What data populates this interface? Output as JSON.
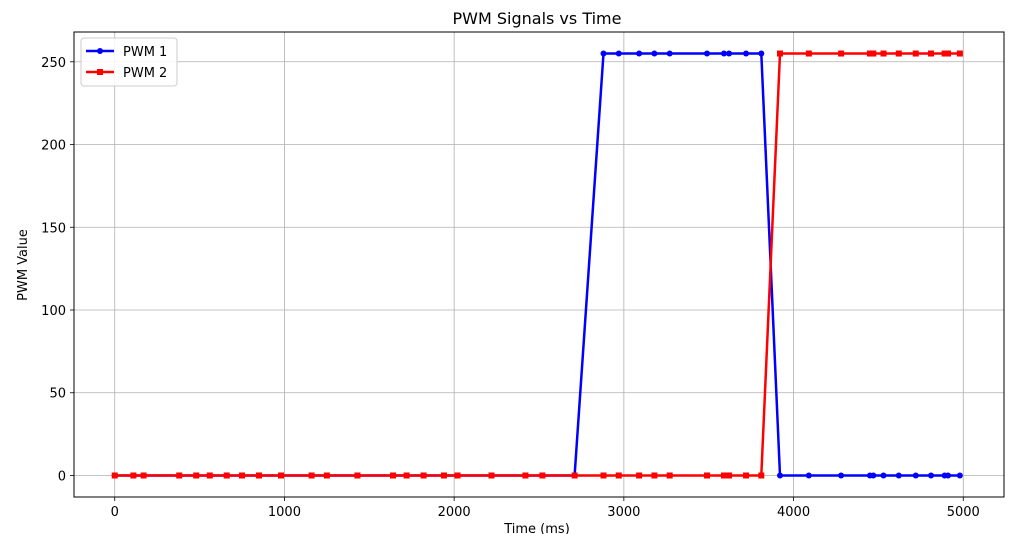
{
  "chart_data": {
    "type": "line",
    "title": "PWM Signals vs Time",
    "xlabel": "Time (ms)",
    "ylabel": "PWM Value",
    "xlim": [
      -240,
      5240
    ],
    "ylim": [
      -13,
      268
    ],
    "xticks": [
      0,
      1000,
      2000,
      3000,
      4000,
      5000
    ],
    "yticks": [
      0,
      50,
      100,
      150,
      200,
      250
    ],
    "grid": true,
    "legend_position": "top-left",
    "series": [
      {
        "name": "PWM 1",
        "color": "#0000ff",
        "marker": "circle",
        "x": [
          0,
          110,
          170,
          380,
          480,
          560,
          660,
          750,
          850,
          980,
          1160,
          1250,
          1430,
          1640,
          1720,
          1820,
          1940,
          2020,
          2220,
          2420,
          2520,
          2710,
          2880,
          2970,
          3090,
          3180,
          3270,
          3490,
          3590,
          3620,
          3720,
          3810,
          3920,
          4090,
          4280,
          4450,
          4470,
          4530,
          4620,
          4720,
          4810,
          4890,
          4910,
          4980
        ],
        "y": [
          0,
          0,
          0,
          0,
          0,
          0,
          0,
          0,
          0,
          0,
          0,
          0,
          0,
          0,
          0,
          0,
          0,
          0,
          0,
          0,
          0,
          0,
          255,
          255,
          255,
          255,
          255,
          255,
          255,
          255,
          255,
          255,
          0,
          0,
          0,
          0,
          0,
          0,
          0,
          0,
          0,
          0,
          0,
          0
        ]
      },
      {
        "name": "PWM 2",
        "color": "#ff0000",
        "marker": "square",
        "x": [
          0,
          110,
          170,
          380,
          480,
          560,
          660,
          750,
          850,
          980,
          1160,
          1250,
          1430,
          1640,
          1720,
          1820,
          1940,
          2020,
          2220,
          2420,
          2520,
          2710,
          2880,
          2970,
          3090,
          3180,
          3270,
          3490,
          3590,
          3620,
          3720,
          3810,
          3920,
          4090,
          4280,
          4450,
          4470,
          4530,
          4620,
          4720,
          4810,
          4890,
          4910,
          4980
        ],
        "y": [
          0,
          0,
          0,
          0,
          0,
          0,
          0,
          0,
          0,
          0,
          0,
          0,
          0,
          0,
          0,
          0,
          0,
          0,
          0,
          0,
          0,
          0,
          0,
          0,
          0,
          0,
          0,
          0,
          0,
          0,
          0,
          0,
          255,
          255,
          255,
          255,
          255,
          255,
          255,
          255,
          255,
          255,
          255,
          255
        ]
      }
    ]
  }
}
